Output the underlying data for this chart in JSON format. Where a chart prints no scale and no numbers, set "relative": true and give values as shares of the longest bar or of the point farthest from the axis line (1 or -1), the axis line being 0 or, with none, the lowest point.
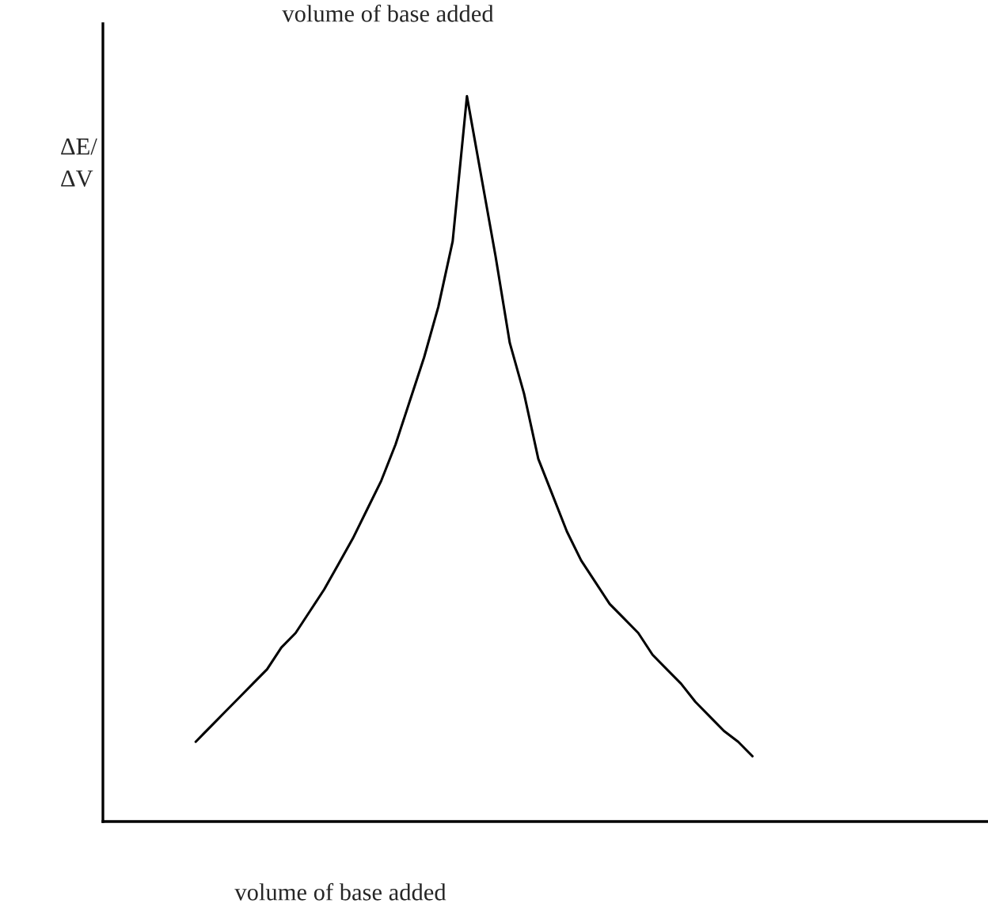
{
  "chart_data": {
    "type": "line",
    "title": "volume of base added",
    "xlabel": "volume of base added",
    "ylabel": "ΔE/\nΔV",
    "categories": [
      null,
      null,
      null,
      null,
      null,
      null,
      null,
      null,
      null,
      null,
      null,
      null,
      null,
      null,
      null,
      null,
      null,
      null,
      null,
      null,
      null,
      null,
      null,
      null,
      null,
      null,
      null,
      null,
      null,
      null,
      null,
      null,
      null,
      null,
      null,
      null,
      null,
      null,
      null,
      null,
      null,
      null,
      null,
      null,
      null,
      null,
      null,
      null,
      null,
      null,
      null,
      null,
      null,
      null,
      null,
      null,
      null,
      null,
      null,
      null,
      null,
      null
    ],
    "series": [
      {
        "color": "#000000",
        "values": [
          null,
          null,
          null,
          null,
          null,
          null,
          0.11,
          0.13,
          0.15,
          0.17,
          0.19,
          0.21,
          0.24,
          0.26,
          0.29,
          0.32,
          0.355,
          0.39,
          0.43,
          0.47,
          0.52,
          0.58,
          0.64,
          0.71,
          0.8,
          1.0,
          0.89,
          0.78,
          0.66,
          0.59,
          0.5,
          0.45,
          0.4,
          0.36,
          0.33,
          0.3,
          0.28,
          0.26,
          0.23,
          0.21,
          0.19,
          0.165,
          0.145,
          0.125,
          0.11,
          0.09,
          null,
          null,
          null,
          null,
          null,
          null,
          null,
          null,
          null,
          null,
          null,
          null,
          null,
          null,
          null,
          null
        ]
      }
    ],
    "relative": true,
    "legend": false,
    "marker": "none",
    "line_style": "solid"
  }
}
